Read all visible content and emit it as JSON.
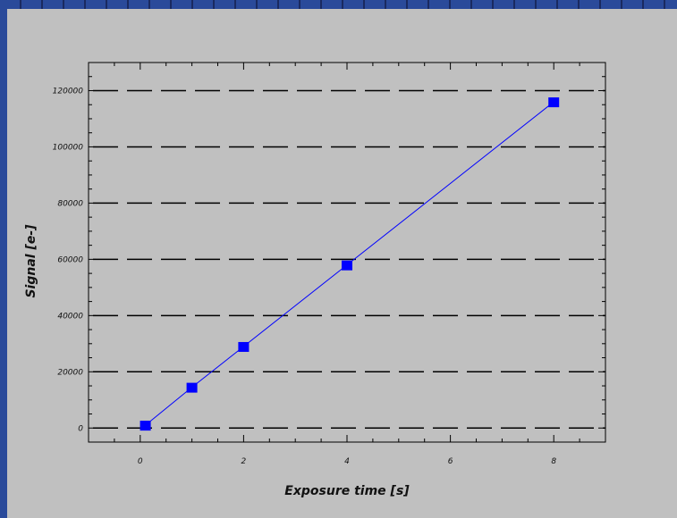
{
  "colors": {
    "frame": "#1e2f6b",
    "panel": "#c0c0c0",
    "series": "#0000ff",
    "grid": "#000000",
    "axes": "#000000"
  },
  "chart_data": {
    "type": "line",
    "title": "",
    "xlabel": "Exposure time [s]",
    "ylabel": "Signal [e-]",
    "xlim": [
      -1,
      9
    ],
    "ylim": [
      -5000,
      130000
    ],
    "xticks": [
      0,
      2,
      4,
      6,
      8
    ],
    "yticks": [
      0,
      20000,
      40000,
      60000,
      80000,
      100000,
      120000
    ],
    "grid": "horizontal-dashed",
    "series": [
      {
        "x": [
          0.1,
          1,
          2,
          4,
          8
        ],
        "y": [
          1000,
          14500,
          29000,
          58000,
          116000
        ],
        "marker": "square",
        "color": "#0000ff"
      }
    ]
  }
}
